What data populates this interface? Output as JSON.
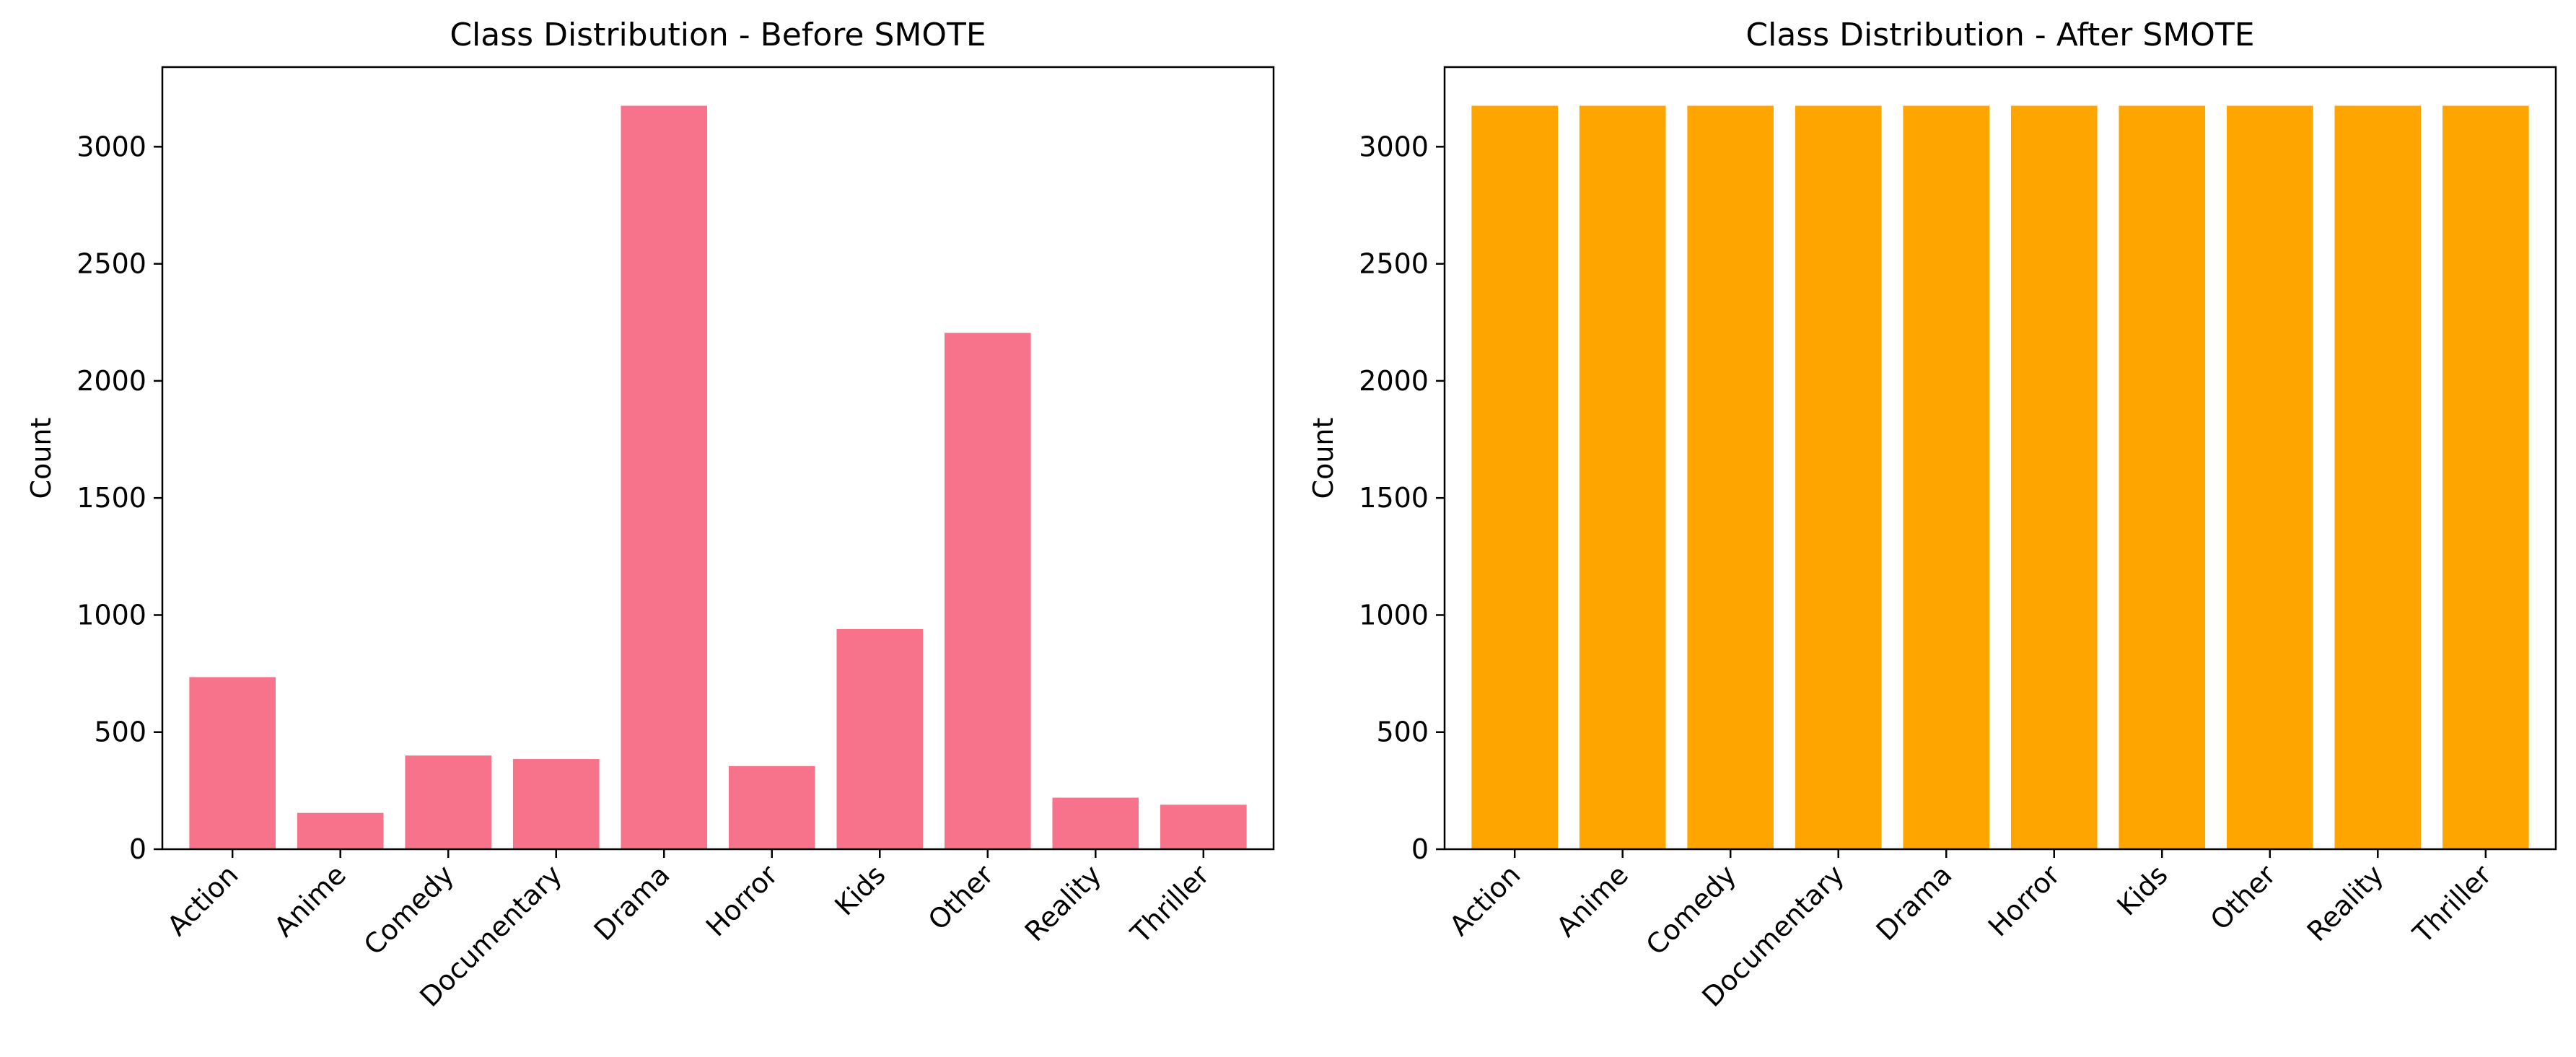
{
  "chart_data": [
    {
      "type": "bar",
      "title": "Class Distribution - Before SMOTE",
      "xlabel": "",
      "ylabel": "Count",
      "categories": [
        "Action",
        "Anime",
        "Comedy",
        "Documentary",
        "Drama",
        "Horror",
        "Kids",
        "Other",
        "Reality",
        "Thriller"
      ],
      "values": [
        735,
        155,
        400,
        385,
        3175,
        355,
        940,
        2205,
        220,
        190
      ],
      "ylim": [
        0,
        3340
      ],
      "yticks": [
        0,
        500,
        1000,
        1500,
        2000,
        2500,
        3000
      ],
      "color": "#f7728b",
      "grid": false
    },
    {
      "type": "bar",
      "title": "Class Distribution - After SMOTE",
      "xlabel": "",
      "ylabel": "Count",
      "categories": [
        "Action",
        "Anime",
        "Comedy",
        "Documentary",
        "Drama",
        "Horror",
        "Kids",
        "Other",
        "Reality",
        "Thriller"
      ],
      "values": [
        3175,
        3175,
        3175,
        3175,
        3175,
        3175,
        3175,
        3175,
        3175,
        3175
      ],
      "ylim": [
        0,
        3340
      ],
      "yticks": [
        0,
        500,
        1000,
        1500,
        2000,
        2500,
        3000
      ],
      "color": "#ffa500",
      "grid": false
    }
  ]
}
